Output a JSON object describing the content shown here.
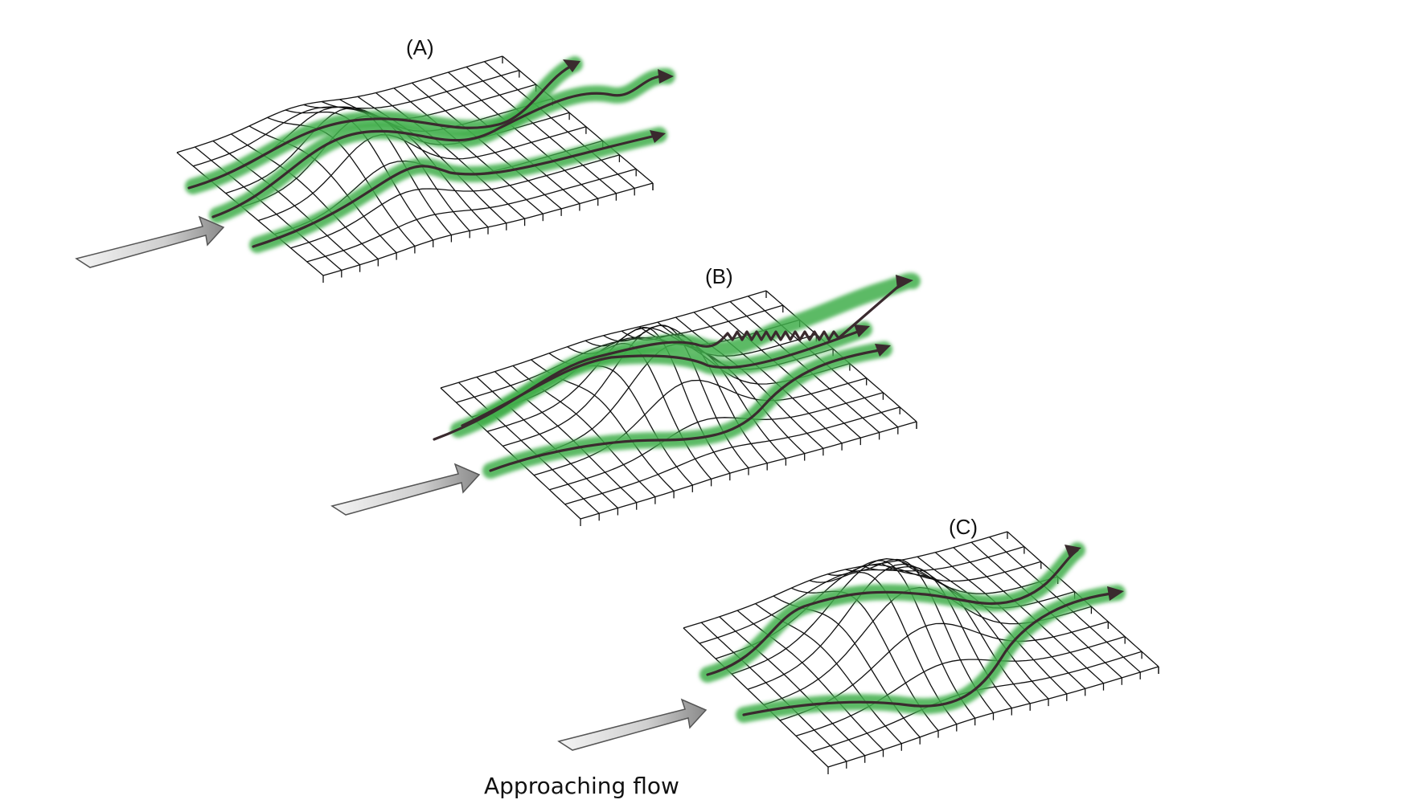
{
  "panels": [
    {
      "label": "(A)"
    },
    {
      "label": "(B)"
    },
    {
      "label": "(C)"
    }
  ],
  "caption": "Approaching flow",
  "colors": {
    "streamline_glow": "#3fae4a",
    "streamline": "#3a2a2e",
    "grid": "#111111",
    "flow_arrow_light": "#f2f2f2",
    "flow_arrow_dark": "#8a8a8a"
  }
}
